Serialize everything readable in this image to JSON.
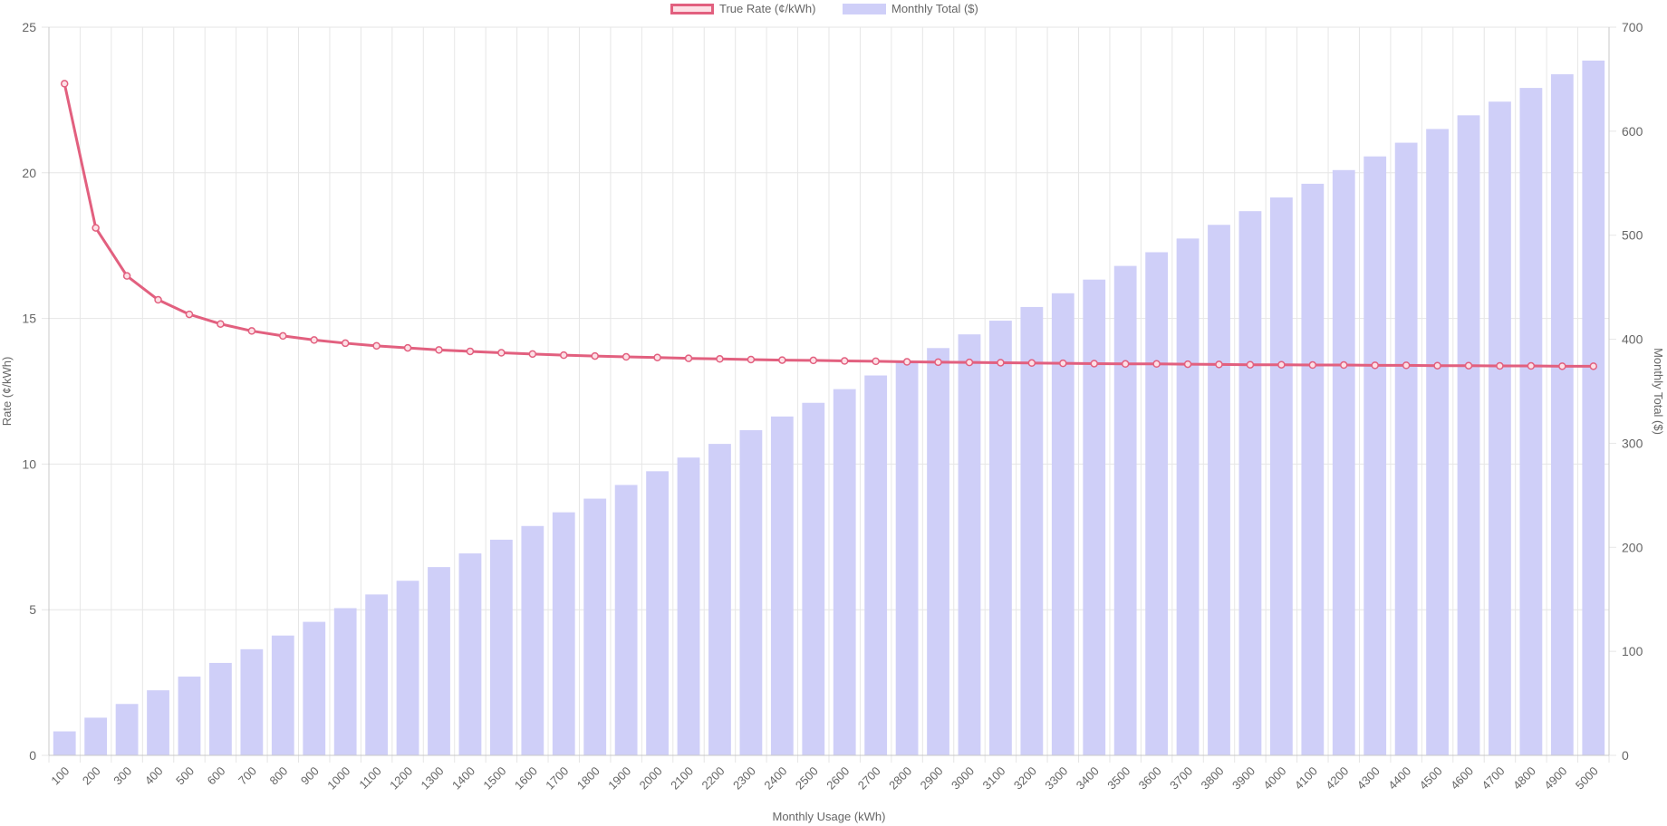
{
  "colors": {
    "line": "#e2607f",
    "line_fill": "#fde0e6",
    "bar": "#cfcff8",
    "grid": "#e6e6e6",
    "axis": "#c8c8c8",
    "text": "#666666"
  },
  "legend": {
    "items": [
      {
        "label": "True Rate (¢/kWh)",
        "type": "line"
      },
      {
        "label": "Monthly Total ($)",
        "type": "bar"
      }
    ]
  },
  "chart_data": {
    "type": "bar+line",
    "title": "",
    "xlabel": "Monthly Usage (kWh)",
    "ylabel": "Rate (¢/kWh)",
    "y2label": "Monthly Total ($)",
    "ylim": [
      0,
      25
    ],
    "y2lim": [
      0,
      700
    ],
    "yticks": [
      0,
      5,
      10,
      15,
      20,
      25
    ],
    "y2ticks": [
      0,
      100,
      200,
      300,
      400,
      500,
      600,
      700
    ],
    "grid": true,
    "legend_position": "top",
    "categories": [
      100,
      200,
      300,
      400,
      500,
      600,
      700,
      800,
      900,
      1000,
      1100,
      1200,
      1300,
      1400,
      1500,
      1600,
      1700,
      1800,
      1900,
      2000,
      2100,
      2200,
      2300,
      2400,
      2500,
      2600,
      2700,
      2800,
      2900,
      3000,
      3100,
      3200,
      3300,
      3400,
      3500,
      3600,
      3700,
      3800,
      3900,
      4000,
      4100,
      4200,
      4300,
      4400,
      4500,
      4600,
      4700,
      4800,
      4900,
      5000
    ],
    "series": [
      {
        "name": "True Rate (¢/kWh)",
        "type": "line",
        "axis": "left",
        "values": [
          23.06,
          18.11,
          16.46,
          15.64,
          15.14,
          14.81,
          14.57,
          14.4,
          14.26,
          14.15,
          14.06,
          13.99,
          13.92,
          13.87,
          13.82,
          13.78,
          13.74,
          13.71,
          13.68,
          13.66,
          13.63,
          13.61,
          13.59,
          13.57,
          13.56,
          13.54,
          13.53,
          13.51,
          13.5,
          13.49,
          13.48,
          13.47,
          13.46,
          13.45,
          13.44,
          13.44,
          13.43,
          13.42,
          13.41,
          13.41,
          13.4,
          13.4,
          13.39,
          13.39,
          13.38,
          13.38,
          13.37,
          13.37,
          13.36,
          13.36
        ]
      },
      {
        "name": "Monthly Total ($)",
        "type": "bar",
        "axis": "right",
        "values": [
          23.06,
          36.22,
          49.38,
          62.54,
          75.7,
          88.86,
          102.02,
          115.18,
          128.34,
          141.5,
          154.66,
          167.82,
          180.98,
          194.14,
          207.3,
          220.46,
          233.62,
          246.78,
          259.94,
          273.1,
          286.26,
          299.42,
          312.58,
          325.74,
          338.9,
          352.06,
          365.22,
          378.38,
          391.54,
          404.7,
          417.86,
          431.02,
          444.18,
          457.34,
          470.5,
          483.66,
          496.82,
          509.98,
          523.14,
          536.3,
          549.46,
          562.62,
          575.78,
          588.94,
          602.1,
          615.26,
          628.42,
          641.58,
          654.74,
          667.9
        ]
      }
    ]
  }
}
